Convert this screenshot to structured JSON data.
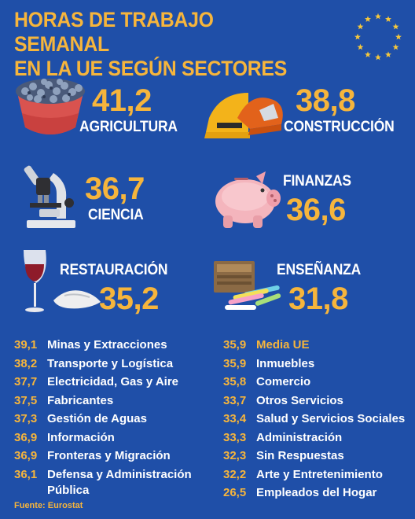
{
  "title_line1": "HORAS DE TRABAJO SEMANAL",
  "title_line2": "EN LA UE SEGÚN SECTORES",
  "colors": {
    "background": "#1f4fa8",
    "accent": "#f6b53c",
    "text": "#ffffff"
  },
  "featured": [
    {
      "value": "41,2",
      "label": "AGRICULTURA",
      "icon": "blueberry-bowl-icon"
    },
    {
      "value": "38,8",
      "label": "CONSTRUCCIÓN",
      "icon": "hard-hat-icon"
    },
    {
      "value": "36,7",
      "label": "CIENCIA",
      "icon": "microscope-icon"
    },
    {
      "value": "36,6",
      "label": "FINANZAS",
      "icon": "piggy-bank-icon"
    },
    {
      "value": "35,2",
      "label": "RESTAURACIÓN",
      "icon": "wine-glass-icon"
    },
    {
      "value": "31,8",
      "label": "ENSEÑANZA",
      "icon": "books-chalk-icon"
    }
  ],
  "left_list": [
    {
      "value": "39,1",
      "name": "Minas y Extracciones"
    },
    {
      "value": "38,2",
      "name": "Transporte y Logística"
    },
    {
      "value": "37,7",
      "name": "Electricidad, Gas y Aire"
    },
    {
      "value": "37,5",
      "name": "Fabricantes"
    },
    {
      "value": "37,3",
      "name": "Gestión de Aguas"
    },
    {
      "value": "36,9",
      "name": "Información"
    },
    {
      "value": "36,9",
      "name": "Fronteras y Migración"
    },
    {
      "value": "36,1",
      "name": "Defensa y Administración",
      "name2": "Pública"
    }
  ],
  "right_list": [
    {
      "value": "35,9",
      "name": "Media UE",
      "highlight": true
    },
    {
      "value": "35,9",
      "name": "Inmuebles"
    },
    {
      "value": "35,8",
      "name": "Comercio"
    },
    {
      "value": "33,7",
      "name": "Otros Servicios"
    },
    {
      "value": "33,4",
      "name": "Salud y Servicios Sociales"
    },
    {
      "value": "33,3",
      "name": "Administración"
    },
    {
      "value": "32,3",
      "name": "Sin Respuestas"
    },
    {
      "value": "32,2",
      "name": "Arte y Entretenimiento"
    },
    {
      "value": "26,5",
      "name": "Empleados del Hogar"
    }
  ],
  "source": "Fuente: Eurostat"
}
